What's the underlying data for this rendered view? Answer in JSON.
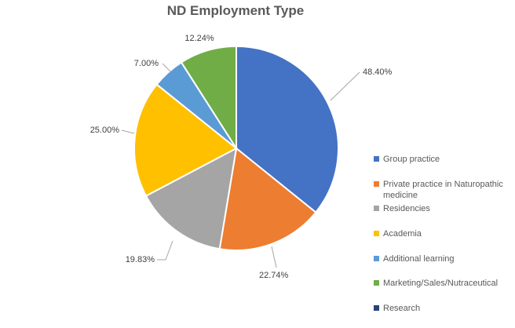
{
  "chart_data": {
    "type": "pie",
    "title": "ND Employment Type",
    "legend": "right",
    "slices": [
      {
        "name": "Group practice",
        "value": 48.4,
        "label": "48.40%",
        "color": "#4472C4",
        "drawn": true
      },
      {
        "name": "Private practice in Naturopathic medicine",
        "value": 22.74,
        "label": "22.74%",
        "color": "#ED7D31",
        "drawn": true
      },
      {
        "name": "Residencies",
        "value": 19.83,
        "label": "19.83%",
        "color": "#A5A5A5",
        "drawn": true
      },
      {
        "name": "Academia",
        "value": 25.0,
        "label": "25.00%",
        "color": "#FFC000",
        "drawn": true
      },
      {
        "name": "Additional learning",
        "value": 7.0,
        "label": "7.00%",
        "color": "#5B9BD5",
        "drawn": true
      },
      {
        "name": "Marketing/Sales/Nutraceutical",
        "value": 12.24,
        "label": "12.24%",
        "color": "#70AD47",
        "drawn": true
      },
      {
        "name": "Research",
        "value": 0,
        "label": "",
        "color": "#264478",
        "drawn": false
      }
    ]
  }
}
